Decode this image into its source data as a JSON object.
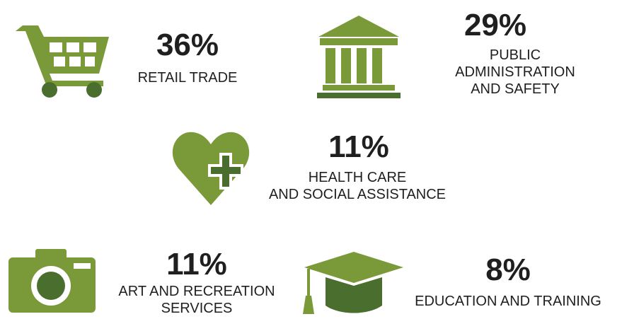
{
  "items": [
    {
      "value": "36%",
      "label": [
        "RETAIL TRADE"
      ]
    },
    {
      "value": "29%",
      "label": [
        "PUBLIC",
        "ADMINISTRATION",
        "AND SAFETY"
      ]
    },
    {
      "value": "11%",
      "label": [
        "HEALTH CARE",
        "AND SOCIAL ASSISTANCE"
      ]
    },
    {
      "value": "11%",
      "label": [
        "ART AND RECREATION",
        "SERVICES"
      ]
    },
    {
      "value": "8%",
      "label": [
        "EDUCATION AND TRAINING"
      ]
    }
  ]
}
